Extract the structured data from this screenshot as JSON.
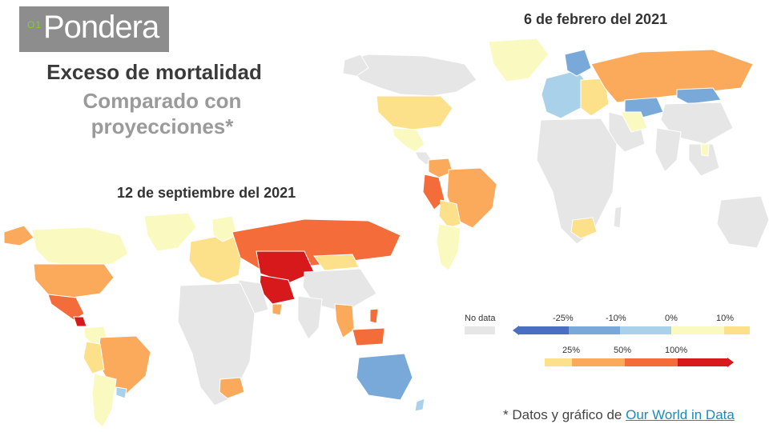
{
  "brand": {
    "name": "Pondera",
    "mark": "O1"
  },
  "header": {
    "title": "Exceso de mortalidad",
    "subtitle": "Comparado con proyecciones*"
  },
  "maps": {
    "feb": {
      "date": "6 de febrero del 2021"
    },
    "sep": {
      "date": "12 de septiembre del 2021"
    }
  },
  "legend": {
    "no_data": "No data",
    "negative_ticks": [
      "-25%",
      "-10%",
      "0%",
      "10%"
    ],
    "positive_ticks": [
      "25%",
      "50%",
      "100%"
    ],
    "colors": {
      "no_data": "#e6e6e6",
      "neg_low": "#4a6fc2",
      "neg_mid": "#79a9d8",
      "neg_small": "#a9d2ea",
      "near_zero": "#fafac0",
      "pos_small": "#fde08a",
      "pos_mid": "#fba95a",
      "pos_high": "#f36c3a",
      "pos_max": "#d7191c"
    }
  },
  "source": {
    "prefix": "* Datos y gráfico de",
    "link": "Our World in Data"
  }
}
